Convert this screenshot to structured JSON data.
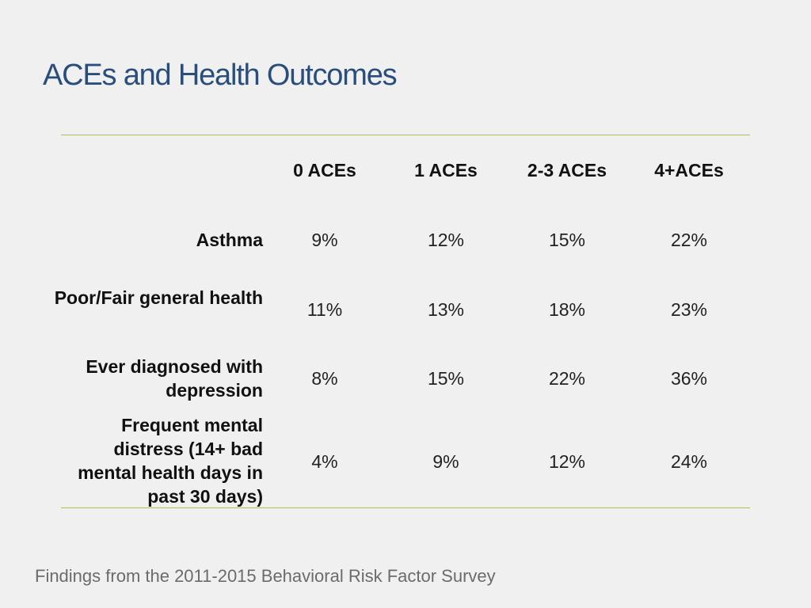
{
  "title": "ACEs and Health Outcomes",
  "table": {
    "columns": [
      "0 ACEs",
      "1 ACEs",
      "2-3 ACEs",
      "4+ACEs"
    ],
    "rows": [
      {
        "label": "Asthma",
        "values": [
          "9%",
          "12%",
          "15%",
          "22%"
        ]
      },
      {
        "label": "Poor/Fair general health",
        "values": [
          "11%",
          "13%",
          "18%",
          "23%"
        ]
      },
      {
        "label": "Ever diagnosed with depression",
        "values": [
          "8%",
          "15%",
          "22%",
          "36%"
        ]
      },
      {
        "label": "Frequent mental distress (14+ bad mental health days in past 30 days)",
        "values": [
          "4%",
          "9%",
          "12%",
          "24%"
        ]
      }
    ]
  },
  "footer": "Findings from the 2011-2015 Behavioral Risk Factor Survey"
}
